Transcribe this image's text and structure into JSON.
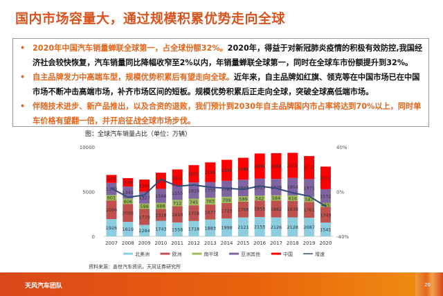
{
  "title": "国内市场容量大，通过规模积累优势走向全球",
  "bullets": [
    {
      "highlight": "2020年中国汽车销量蝉联全球第一，占全球份额32%。",
      "text": "2020年，得益于对新冠肺炎疫情的积极有效防控,我国经济社会较快恢复，汽车销量同比降幅收窄至2%以内，年销量蝉联全球第一，同时在全球车市份额提升到32%。"
    },
    {
      "highlight": "自主品牌发力中高端车型，规模优势积累后有望走向全球。",
      "text": "近年来，自主品牌如红旗、领克等在中国市场已在中国市场不断冲击高端市场，补齐市场区间的短板。规模优势积累后正走向全球，突破全球高低端市场。"
    },
    {
      "highlight": "伴随技术进步、新产品推出，以及合资的退败，我们预计到2030年自主品牌国内市占率将达到70%以上，同时单车价格有望翻一倍，并开启征战全球市场步伐。",
      "text": ""
    }
  ],
  "chart_caption": "图：全球汽车销量占比（单位：万辆）",
  "source": "资料来源：盖世汽车资讯，天风证券研究所",
  "footer": {
    "team": "天风汽车团队",
    "page": "20"
  },
  "chart_data": {
    "type": "bar",
    "stacked": true,
    "categories": [
      "2007",
      "2008",
      "2009",
      "2010",
      "2011",
      "2012",
      "2013",
      "2014",
      "2015",
      "2016",
      "2017",
      "2018",
      "2019",
      "2020"
    ],
    "ylim": [
      0,
      10000
    ],
    "yticks": [
      "0",
      "5000",
      "10000"
    ],
    "y2lim": [
      -40,
      40
    ],
    "y2ticks": [
      "-40%",
      "0%",
      "40%"
    ],
    "legend_position": "bottom",
    "series": [
      {
        "name": "北美洲",
        "color": "#8ccde0",
        "values": [
          1926,
          1619,
          1284,
          1743,
          1556,
          1718,
          1883,
          1998,
          2121,
          2155,
          2126,
          2128,
          2087,
          1541
        ]
      },
      {
        "name": "欧洲",
        "color": "#c0504d",
        "values": [
          2096,
          2008,
          1779,
          1318,
          1810,
          1758,
          1677,
          1723,
          1768,
          1855,
          1882,
          1838,
          1761,
          1749
        ]
      },
      {
        "name": "南半球",
        "color": "#9bbb59",
        "values": [
          601,
          606,
          598,
          688,
          712,
          745,
          763,
          709,
          599,
          542,
          584,
          616,
          587,
          455
        ]
      },
      {
        "name": "亚洲其他",
        "color": "#8064a2",
        "values": [
          1370,
          1345,
          1327,
          1566,
          1555,
          1816,
          1755,
          1787,
          1843,
          1915,
          1829,
          1954,
          1971,
          1532
        ]
      },
      {
        "name": "中国",
        "color": "#ff0000",
        "values": [
          879,
          938,
          1364,
          1806,
          1851,
          1931,
          2198,
          2349,
          2460,
          2803,
          2888,
          2808,
          2577,
          2527
        ]
      }
    ],
    "line": {
      "name": "增速",
      "color": "#2f4b7c",
      "axis": "right",
      "values": [
        3,
        -5,
        -3,
        11,
        5,
        6,
        4,
        3,
        2,
        5,
        3,
        -1,
        -4,
        -13
      ]
    }
  }
}
